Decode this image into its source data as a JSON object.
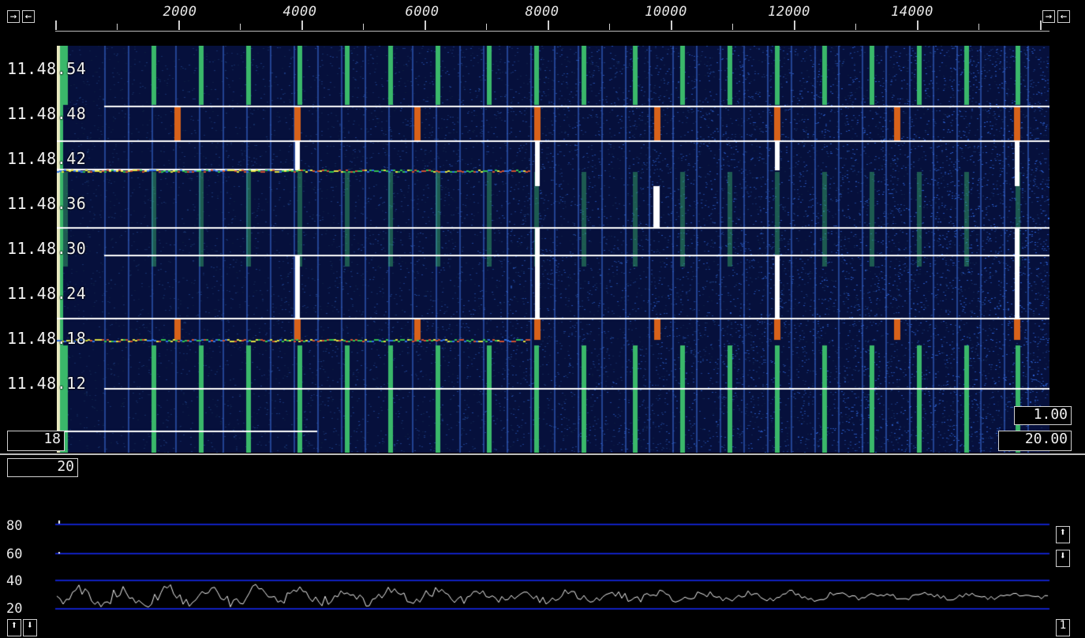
{
  "toolbar": {
    "left_buttons": [
      "→",
      "←"
    ],
    "right_buttons": [
      "→",
      "←"
    ]
  },
  "frequency_scale": {
    "labels": [
      "2000",
      "4000",
      "6000",
      "8000",
      "10000",
      "12000",
      "14000"
    ]
  },
  "waterfall": {
    "time_labels": [
      "11.48.54",
      "11.48.48",
      "11.48.42",
      "11.48.36",
      "11.48.30",
      "11.48.24",
      "11.48.18",
      "11.48.12"
    ],
    "gain_box": "1.00",
    "zero_box": "20.00",
    "avg_box": "18",
    "below_box": "20",
    "colors": {
      "background": "#06103c",
      "carrier_green": "#3ab86a",
      "carrier_blue": "#3a6cd8",
      "carrier_orange": "#d8621a",
      "carrier_white": "#ffffff",
      "marker_line": "#ffffff"
    }
  },
  "spectrum": {
    "y_labels": [
      "80",
      "60",
      "40",
      "20"
    ],
    "grid_color": "#1020c0",
    "trace_color": "#f0f0f0",
    "up_button": "⬆",
    "down_button": "⬇",
    "corner_up": "⬆",
    "corner_down": "⬇",
    "corner_right": "1"
  }
}
